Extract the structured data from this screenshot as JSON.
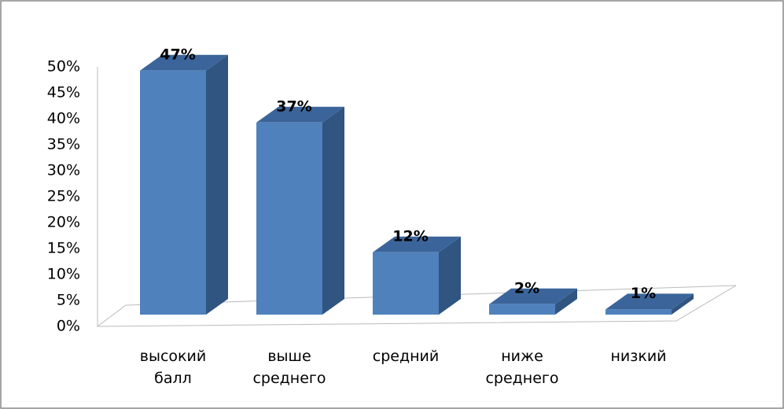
{
  "chart_data": {
    "type": "bar3d",
    "categories": [
      "высокий балл",
      "выше среднего",
      "средний",
      "ниже среднего",
      "низкий"
    ],
    "values": [
      47,
      37,
      12,
      2,
      1
    ],
    "value_labels": [
      "47%",
      "37%",
      "12%",
      "2%",
      "1%"
    ],
    "color": "#4f81bd",
    "ylim": [
      0,
      50
    ],
    "yticks": [
      {
        "value": 0,
        "label": "0%"
      },
      {
        "value": 5,
        "label": "5%"
      },
      {
        "value": 10,
        "label": "10%"
      },
      {
        "value": 15,
        "label": "15%"
      },
      {
        "value": 20,
        "label": "20%"
      },
      {
        "value": 25,
        "label": "25%"
      },
      {
        "value": 30,
        "label": "30%"
      },
      {
        "value": 35,
        "label": "35%"
      },
      {
        "value": 40,
        "label": "40%"
      },
      {
        "value": 45,
        "label": "45%"
      },
      {
        "value": 50,
        "label": "50%"
      }
    ]
  }
}
